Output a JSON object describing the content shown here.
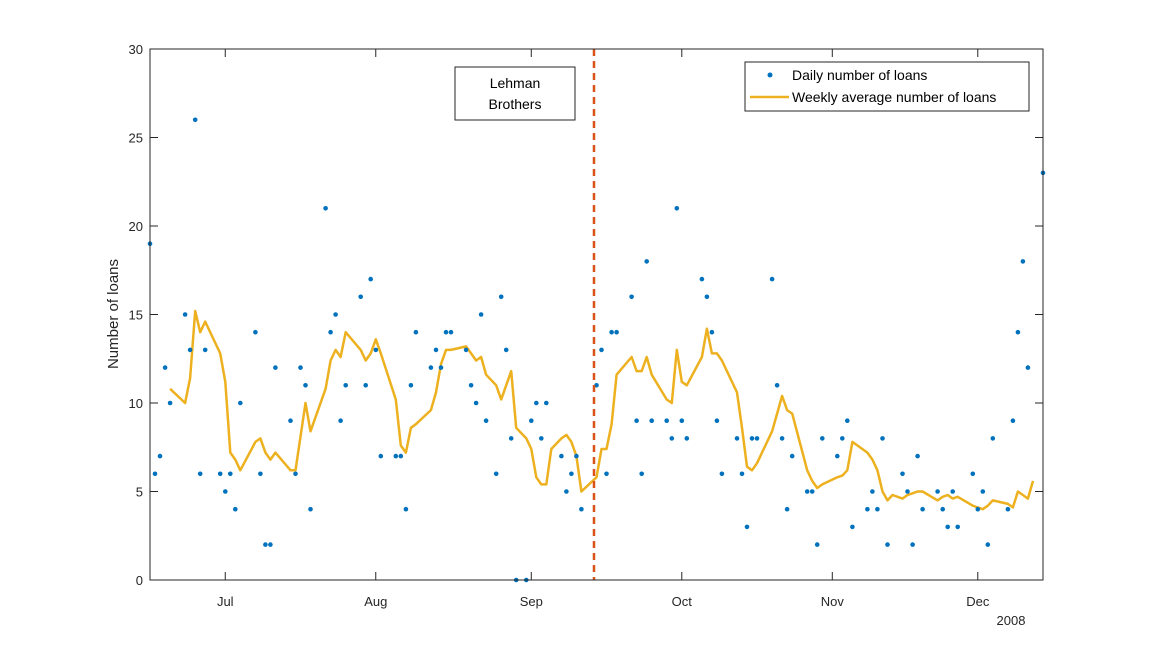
{
  "chart_data": {
    "type": "scatter",
    "title": "",
    "xlabel": "",
    "ylabel": "Number of loans",
    "year_label": "2008",
    "xlim": [
      0,
      178
    ],
    "ylim": [
      0,
      30
    ],
    "yticks": [
      0,
      5,
      10,
      15,
      20,
      25,
      30
    ],
    "xticks": [
      {
        "label": "Jul",
        "day": 15
      },
      {
        "label": "Aug",
        "day": 45
      },
      {
        "label": "Sep",
        "day": 76
      },
      {
        "label": "Oct",
        "day": 106
      },
      {
        "label": "Nov",
        "day": 136
      },
      {
        "label": "Dec",
        "day": 165
      }
    ],
    "event_line": {
      "day": 88.5,
      "color": "#D95319"
    },
    "annotation": {
      "line1": "Lehman",
      "line2": "Brothers"
    },
    "legend_position": "top-right",
    "series": [
      {
        "name": "Daily number of loans",
        "kind": "points",
        "color": "#0072BD",
        "points": [
          [
            0,
            19
          ],
          [
            1,
            6
          ],
          [
            2,
            7
          ],
          [
            3,
            12
          ],
          [
            4,
            10
          ],
          [
            7,
            15
          ],
          [
            8,
            13
          ],
          [
            9,
            26
          ],
          [
            10,
            6
          ],
          [
            11,
            13
          ],
          [
            14,
            6
          ],
          [
            15,
            5
          ],
          [
            16,
            6
          ],
          [
            17,
            4
          ],
          [
            18,
            10
          ],
          [
            21,
            14
          ],
          [
            22,
            6
          ],
          [
            23,
            2
          ],
          [
            24,
            2
          ],
          [
            25,
            12
          ],
          [
            28,
            9
          ],
          [
            29,
            6
          ],
          [
            30,
            12
          ],
          [
            31,
            11
          ],
          [
            32,
            4
          ],
          [
            35,
            21
          ],
          [
            36,
            14
          ],
          [
            37,
            15
          ],
          [
            38,
            9
          ],
          [
            39,
            11
          ],
          [
            42,
            16
          ],
          [
            43,
            11
          ],
          [
            44,
            17
          ],
          [
            45,
            13
          ],
          [
            46,
            7
          ],
          [
            49,
            7
          ],
          [
            50,
            7
          ],
          [
            51,
            4
          ],
          [
            52,
            11
          ],
          [
            53,
            14
          ],
          [
            56,
            12
          ],
          [
            57,
            13
          ],
          [
            58,
            12
          ],
          [
            59,
            14
          ],
          [
            60,
            14
          ],
          [
            63,
            13
          ],
          [
            64,
            11
          ],
          [
            65,
            10
          ],
          [
            66,
            15
          ],
          [
            67,
            9
          ],
          [
            69,
            6
          ],
          [
            70,
            16
          ],
          [
            71,
            13
          ],
          [
            72,
            8
          ],
          [
            73,
            0
          ],
          [
            75,
            0
          ],
          [
            76,
            9
          ],
          [
            77,
            10
          ],
          [
            78,
            8
          ],
          [
            79,
            10
          ],
          [
            82,
            7
          ],
          [
            83,
            5
          ],
          [
            84,
            6
          ],
          [
            85,
            7
          ],
          [
            86,
            4
          ],
          [
            89,
            11
          ],
          [
            90,
            13
          ],
          [
            91,
            6
          ],
          [
            92,
            14
          ],
          [
            93,
            14
          ],
          [
            96,
            16
          ],
          [
            97,
            9
          ],
          [
            98,
            6
          ],
          [
            99,
            18
          ],
          [
            100,
            9
          ],
          [
            103,
            9
          ],
          [
            104,
            8
          ],
          [
            105,
            21
          ],
          [
            106,
            9
          ],
          [
            107,
            8
          ],
          [
            110,
            17
          ],
          [
            111,
            16
          ],
          [
            112,
            14
          ],
          [
            113,
            9
          ],
          [
            114,
            6
          ],
          [
            117,
            8
          ],
          [
            118,
            6
          ],
          [
            119,
            3
          ],
          [
            120,
            8
          ],
          [
            121,
            8
          ],
          [
            124,
            17
          ],
          [
            125,
            11
          ],
          [
            126,
            8
          ],
          [
            127,
            4
          ],
          [
            128,
            7
          ],
          [
            131,
            5
          ],
          [
            132,
            5
          ],
          [
            133,
            2
          ],
          [
            134,
            8
          ],
          [
            137,
            7
          ],
          [
            138,
            8
          ],
          [
            139,
            9
          ],
          [
            140,
            3
          ],
          [
            143,
            4
          ],
          [
            144,
            5
          ],
          [
            145,
            4
          ],
          [
            146,
            8
          ],
          [
            147,
            2
          ],
          [
            150,
            6
          ],
          [
            151,
            5
          ],
          [
            152,
            2
          ],
          [
            153,
            7
          ],
          [
            154,
            4
          ],
          [
            157,
            5
          ],
          [
            158,
            4
          ],
          [
            159,
            3
          ],
          [
            160,
            5
          ],
          [
            161,
            3
          ],
          [
            164,
            6
          ],
          [
            165,
            4
          ],
          [
            166,
            5
          ],
          [
            167,
            2
          ],
          [
            168,
            8
          ],
          [
            171,
            4
          ],
          [
            172,
            9
          ],
          [
            173,
            14
          ],
          [
            174,
            18
          ],
          [
            175,
            12
          ],
          [
            178,
            23
          ]
        ]
      },
      {
        "name": "Weekly average number of loans",
        "kind": "line",
        "color": "#EDB120",
        "points": [
          [
            4,
            10.8
          ],
          [
            7,
            10.0
          ],
          [
            8,
            11.4
          ],
          [
            9,
            15.2
          ],
          [
            10,
            14.0
          ],
          [
            11,
            14.6
          ],
          [
            14,
            12.8
          ],
          [
            15,
            11.2
          ],
          [
            16,
            7.2
          ],
          [
            17,
            6.8
          ],
          [
            18,
            6.2
          ],
          [
            21,
            7.8
          ],
          [
            22,
            8.0
          ],
          [
            23,
            7.2
          ],
          [
            24,
            6.8
          ],
          [
            25,
            7.2
          ],
          [
            28,
            6.2
          ],
          [
            29,
            6.2
          ],
          [
            31,
            10.0
          ],
          [
            32,
            8.4
          ],
          [
            35,
            10.8
          ],
          [
            36,
            12.4
          ],
          [
            37,
            13.0
          ],
          [
            38,
            12.6
          ],
          [
            39,
            14.0
          ],
          [
            42,
            13.0
          ],
          [
            43,
            12.4
          ],
          [
            44,
            12.8
          ],
          [
            45,
            13.6
          ],
          [
            46,
            12.8
          ],
          [
            49,
            10.2
          ],
          [
            50,
            7.6
          ],
          [
            51,
            7.2
          ],
          [
            52,
            8.6
          ],
          [
            53,
            8.8
          ],
          [
            56,
            9.6
          ],
          [
            57,
            10.6
          ],
          [
            58,
            12.2
          ],
          [
            59,
            13.0
          ],
          [
            60,
            13.0
          ],
          [
            63,
            13.2
          ],
          [
            64,
            12.8
          ],
          [
            65,
            12.4
          ],
          [
            66,
            12.6
          ],
          [
            67,
            11.6
          ],
          [
            69,
            11.0
          ],
          [
            70,
            10.2
          ],
          [
            71,
            11.0
          ],
          [
            72,
            11.8
          ],
          [
            73,
            8.6
          ],
          [
            75,
            8.0
          ],
          [
            76,
            7.4
          ],
          [
            77,
            5.8
          ],
          [
            78,
            5.4
          ],
          [
            79,
            5.4
          ],
          [
            80,
            7.4
          ],
          [
            82,
            8.0
          ],
          [
            83,
            8.2
          ],
          [
            84,
            7.8
          ],
          [
            85,
            7.0
          ],
          [
            86,
            5.0
          ],
          [
            89,
            5.8
          ],
          [
            90,
            7.4
          ],
          [
            91,
            7.4
          ],
          [
            92,
            8.8
          ],
          [
            93,
            11.6
          ],
          [
            96,
            12.6
          ],
          [
            97,
            11.8
          ],
          [
            98,
            11.8
          ],
          [
            99,
            12.6
          ],
          [
            100,
            11.6
          ],
          [
            103,
            10.2
          ],
          [
            104,
            10.0
          ],
          [
            105,
            13.0
          ],
          [
            106,
            11.2
          ],
          [
            107,
            11.0
          ],
          [
            110,
            12.6
          ],
          [
            111,
            14.2
          ],
          [
            112,
            12.8
          ],
          [
            113,
            12.8
          ],
          [
            114,
            12.4
          ],
          [
            117,
            10.6
          ],
          [
            118,
            8.6
          ],
          [
            119,
            6.4
          ],
          [
            120,
            6.2
          ],
          [
            121,
            6.6
          ],
          [
            124,
            8.4
          ],
          [
            125,
            9.4
          ],
          [
            126,
            10.4
          ],
          [
            127,
            9.6
          ],
          [
            128,
            9.4
          ],
          [
            131,
            6.2
          ],
          [
            132,
            5.6
          ],
          [
            133,
            5.2
          ],
          [
            134,
            5.4
          ],
          [
            137,
            5.8
          ],
          [
            138,
            5.9
          ],
          [
            139,
            6.2
          ],
          [
            140,
            7.8
          ],
          [
            143,
            7.2
          ],
          [
            144,
            6.8
          ],
          [
            145,
            6.2
          ],
          [
            146,
            5.0
          ],
          [
            147,
            4.5
          ],
          [
            148,
            4.8
          ],
          [
            150,
            4.6
          ],
          [
            151,
            4.8
          ],
          [
            152,
            4.9
          ],
          [
            153,
            5.0
          ],
          [
            154,
            5.0
          ],
          [
            157,
            4.5
          ],
          [
            158,
            4.7
          ],
          [
            159,
            4.8
          ],
          [
            160,
            4.6
          ],
          [
            161,
            4.7
          ],
          [
            164,
            4.2
          ],
          [
            165,
            4.1
          ],
          [
            166,
            4.0
          ],
          [
            167,
            4.2
          ],
          [
            168,
            4.5
          ],
          [
            171,
            4.3
          ],
          [
            172,
            4.1
          ],
          [
            173,
            5.0
          ],
          [
            174,
            4.8
          ],
          [
            175,
            4.6
          ],
          [
            176,
            5.6
          ]
        ]
      }
    ]
  }
}
